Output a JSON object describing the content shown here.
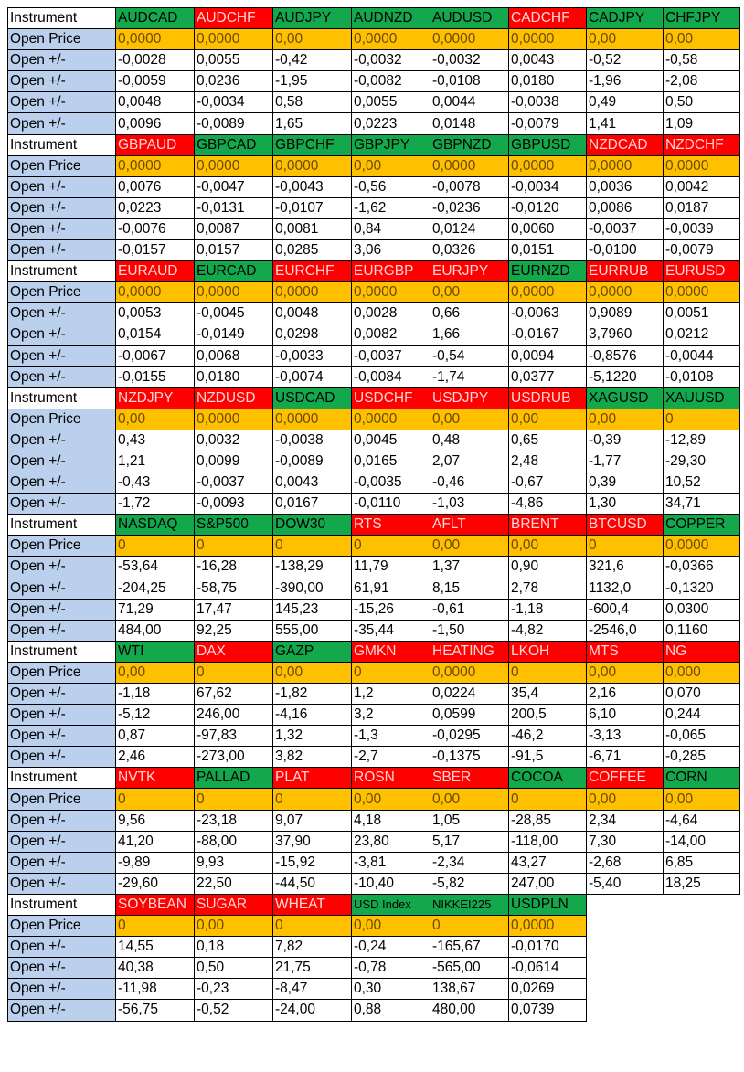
{
  "labels": {
    "instrument": "Instrument",
    "open_price": "Open Price",
    "open_change": "Open +/-"
  },
  "colors": {
    "label_bg": "#bad0ec",
    "green": "#13a84b",
    "red": "#fe0000",
    "orange": "#ffc000"
  },
  "blocks": [
    {
      "instruments": [
        {
          "name": "AUDCAD",
          "color": "green"
        },
        {
          "name": "AUDCHF",
          "color": "red"
        },
        {
          "name": "AUDJPY",
          "color": "green"
        },
        {
          "name": "AUDNZD",
          "color": "green"
        },
        {
          "name": "AUDUSD",
          "color": "green"
        },
        {
          "name": "CADCHF",
          "color": "red"
        },
        {
          "name": "CADJPY",
          "color": "green"
        },
        {
          "name": "CHFJPY",
          "color": "green"
        }
      ],
      "open_price": [
        "0,0000",
        "0,0000",
        "0,00",
        "0,0000",
        "0,0000",
        "0,0000",
        "0,00",
        "0,00"
      ],
      "changes": [
        [
          "-0,0028",
          "0,0055",
          "-0,42",
          "-0,0032",
          "-0,0032",
          "0,0043",
          "-0,52",
          "-0,58"
        ],
        [
          "-0,0059",
          "0,0236",
          "-1,95",
          "-0,0082",
          "-0,0108",
          "0,0180",
          "-1,96",
          "-2,08"
        ],
        [
          "0,0048",
          "-0,0034",
          "0,58",
          "0,0055",
          "0,0044",
          "-0,0038",
          "0,49",
          "0,50"
        ],
        [
          "0,0096",
          "-0,0089",
          "1,65",
          "0,0223",
          "0,0148",
          "-0,0079",
          "1,41",
          "1,09"
        ]
      ]
    },
    {
      "instruments": [
        {
          "name": "GBPAUD",
          "color": "red"
        },
        {
          "name": "GBPCAD",
          "color": "green"
        },
        {
          "name": "GBPCHF",
          "color": "green"
        },
        {
          "name": "GBPJPY",
          "color": "green"
        },
        {
          "name": "GBPNZD",
          "color": "green"
        },
        {
          "name": "GBPUSD",
          "color": "green"
        },
        {
          "name": "NZDCAD",
          "color": "red"
        },
        {
          "name": "NZDCHF",
          "color": "red"
        }
      ],
      "open_price": [
        "0,0000",
        "0,0000",
        "0,0000",
        "0,00",
        "0,0000",
        "0,0000",
        "0,0000",
        "0,0000"
      ],
      "changes": [
        [
          "0,0076",
          "-0,0047",
          "-0,0043",
          "-0,56",
          "-0,0078",
          "-0,0034",
          "0,0036",
          "0,0042"
        ],
        [
          "0,0223",
          "-0,0131",
          "-0,0107",
          "-1,62",
          "-0,0236",
          "-0,0120",
          "0,0086",
          "0,0187"
        ],
        [
          "-0,0076",
          "0,0087",
          "0,0081",
          "0,84",
          "0,0124",
          "0,0060",
          "-0,0037",
          "-0,0039"
        ],
        [
          "-0,0157",
          "0,0157",
          "0,0285",
          "3,06",
          "0,0326",
          "0,0151",
          "-0,0100",
          "-0,0079"
        ]
      ]
    },
    {
      "instruments": [
        {
          "name": "EURAUD",
          "color": "red"
        },
        {
          "name": "EURCAD",
          "color": "green"
        },
        {
          "name": "EURCHF",
          "color": "red"
        },
        {
          "name": "EURGBP",
          "color": "red"
        },
        {
          "name": "EURJPY",
          "color": "red"
        },
        {
          "name": "EURNZD",
          "color": "green"
        },
        {
          "name": "EURRUB",
          "color": "red"
        },
        {
          "name": "EURUSD",
          "color": "red"
        }
      ],
      "open_price": [
        "0,0000",
        "0,0000",
        "0,0000",
        "0,0000",
        "0,00",
        "0,0000",
        "0,0000",
        "0,0000"
      ],
      "changes": [
        [
          "0,0053",
          "-0,0045",
          "0,0048",
          "0,0028",
          "0,66",
          "-0,0063",
          "0,9089",
          "0,0051"
        ],
        [
          "0,0154",
          "-0,0149",
          "0,0298",
          "0,0082",
          "1,66",
          "-0,0167",
          "3,7960",
          "0,0212"
        ],
        [
          "-0,0067",
          "0,0068",
          "-0,0033",
          "-0,0037",
          "-0,54",
          "0,0094",
          "-0,8576",
          "-0,0044"
        ],
        [
          "-0,0155",
          "0,0180",
          "-0,0074",
          "-0,0084",
          "-1,74",
          "0,0377",
          "-5,1220",
          "-0,0108"
        ]
      ]
    },
    {
      "instruments": [
        {
          "name": "NZDJPY",
          "color": "red"
        },
        {
          "name": "NZDUSD",
          "color": "red"
        },
        {
          "name": "USDCAD",
          "color": "green"
        },
        {
          "name": "USDCHF",
          "color": "red"
        },
        {
          "name": "USDJPY",
          "color": "red"
        },
        {
          "name": "USDRUB",
          "color": "red"
        },
        {
          "name": "XAGUSD",
          "color": "green"
        },
        {
          "name": "XAUUSD",
          "color": "green"
        }
      ],
      "open_price": [
        "0,00",
        "0,0000",
        "0,0000",
        "0,0000",
        "0,00",
        "0,00",
        "0,00",
        "0"
      ],
      "changes": [
        [
          "0,43",
          "0,0032",
          "-0,0038",
          "0,0045",
          "0,48",
          "0,65",
          "-0,39",
          "-12,89"
        ],
        [
          "1,21",
          "0,0099",
          "-0,0089",
          "0,0165",
          "2,07",
          "2,48",
          "-1,77",
          "-29,30"
        ],
        [
          "-0,43",
          "-0,0037",
          "0,0043",
          "-0,0035",
          "-0,46",
          "-0,67",
          "0,39",
          "10,52"
        ],
        [
          "-1,72",
          "-0,0093",
          "0,0167",
          "-0,0110",
          "-1,03",
          "-4,86",
          "1,30",
          "34,71"
        ]
      ]
    },
    {
      "instruments": [
        {
          "name": "NASDAQ",
          "color": "green"
        },
        {
          "name": "S&P500",
          "color": "green"
        },
        {
          "name": "DOW30",
          "color": "green"
        },
        {
          "name": "RTS",
          "color": "red"
        },
        {
          "name": "AFLT",
          "color": "red"
        },
        {
          "name": "BRENT",
          "color": "red"
        },
        {
          "name": "BTCUSD",
          "color": "red"
        },
        {
          "name": "COPPER",
          "color": "green"
        }
      ],
      "open_price": [
        "0",
        "0",
        "0",
        "0",
        "0,00",
        "0,00",
        "0",
        "0,0000"
      ],
      "changes": [
        [
          "-53,64",
          "-16,28",
          "-138,29",
          "11,79",
          "1,37",
          "0,90",
          "321,6",
          "-0,0366"
        ],
        [
          "-204,25",
          "-58,75",
          "-390,00",
          "61,91",
          "8,15",
          "2,78",
          "1132,0",
          "-0,1320"
        ],
        [
          "71,29",
          "17,47",
          "145,23",
          "-15,26",
          "-0,61",
          "-1,18",
          "-600,4",
          "0,0300"
        ],
        [
          "484,00",
          "92,25",
          "555,00",
          "-35,44",
          "-1,50",
          "-4,82",
          "-2546,0",
          "0,1160"
        ]
      ]
    },
    {
      "instruments": [
        {
          "name": "WTI",
          "color": "green"
        },
        {
          "name": "DAX",
          "color": "red"
        },
        {
          "name": "GAZP",
          "color": "green"
        },
        {
          "name": "GMKN",
          "color": "red"
        },
        {
          "name": "HEATING",
          "color": "red"
        },
        {
          "name": "LKOH",
          "color": "red"
        },
        {
          "name": "MTS",
          "color": "red"
        },
        {
          "name": "NG",
          "color": "red"
        }
      ],
      "open_price": [
        "0,00",
        "0",
        "0,00",
        "0",
        "0,0000",
        "0",
        "0,00",
        "0,000"
      ],
      "changes": [
        [
          "-1,18",
          "67,62",
          "-1,82",
          "1,2",
          "0,0224",
          "35,4",
          "2,16",
          "0,070"
        ],
        [
          "-5,12",
          "246,00",
          "-4,16",
          "3,2",
          "0,0599",
          "200,5",
          "6,10",
          "0,244"
        ],
        [
          "0,87",
          "-97,83",
          "1,32",
          "-1,3",
          "-0,0295",
          "-46,2",
          "-3,13",
          "-0,065"
        ],
        [
          "2,46",
          "-273,00",
          "3,82",
          "-2,7",
          "-0,1375",
          "-91,5",
          "-6,71",
          "-0,285"
        ]
      ]
    },
    {
      "instruments": [
        {
          "name": "NVTK",
          "color": "red"
        },
        {
          "name": "PALLAD",
          "color": "green"
        },
        {
          "name": "PLAT",
          "color": "red"
        },
        {
          "name": "ROSN",
          "color": "red"
        },
        {
          "name": "SBER",
          "color": "red"
        },
        {
          "name": "COCOA",
          "color": "green"
        },
        {
          "name": "COFFEE",
          "color": "red"
        },
        {
          "name": "CORN",
          "color": "green"
        }
      ],
      "open_price": [
        "0",
        "0",
        "0",
        "0,00",
        "0,00",
        "0",
        "0,00",
        "0,00"
      ],
      "changes": [
        [
          "9,56",
          "-23,18",
          "9,07",
          "4,18",
          "1,05",
          "-28,85",
          "2,34",
          "-4,64"
        ],
        [
          "41,20",
          "-88,00",
          "37,90",
          "23,80",
          "5,17",
          "-118,00",
          "7,30",
          "-14,00"
        ],
        [
          "-9,89",
          "9,93",
          "-15,92",
          "-3,81",
          "-2,34",
          "43,27",
          "-2,68",
          "6,85"
        ],
        [
          "-29,60",
          "22,50",
          "-44,50",
          "-10,40",
          "-5,82",
          "247,00",
          "-5,40",
          "18,25"
        ]
      ]
    },
    {
      "instruments": [
        {
          "name": "SOYBEAN",
          "color": "red"
        },
        {
          "name": "SUGAR",
          "color": "red"
        },
        {
          "name": "WHEAT",
          "color": "red"
        },
        {
          "name": "USD Index",
          "color": "green"
        },
        {
          "name": "NIKKEI225",
          "color": "green"
        },
        {
          "name": "USDPLN",
          "color": "green"
        }
      ],
      "open_price": [
        "0",
        "0,00",
        "0",
        "0,00",
        "0",
        "0,0000"
      ],
      "changes": [
        [
          "14,55",
          "0,18",
          "7,82",
          "-0,24",
          "-165,67",
          "-0,0170"
        ],
        [
          "40,38",
          "0,50",
          "21,75",
          "-0,78",
          "-565,00",
          "-0,0614"
        ],
        [
          "-11,98",
          "-0,23",
          "-8,47",
          "0,30",
          "138,67",
          "0,0269"
        ],
        [
          "-56,75",
          "-0,52",
          "-24,00",
          "0,88",
          "480,00",
          "0,0739"
        ]
      ]
    }
  ]
}
